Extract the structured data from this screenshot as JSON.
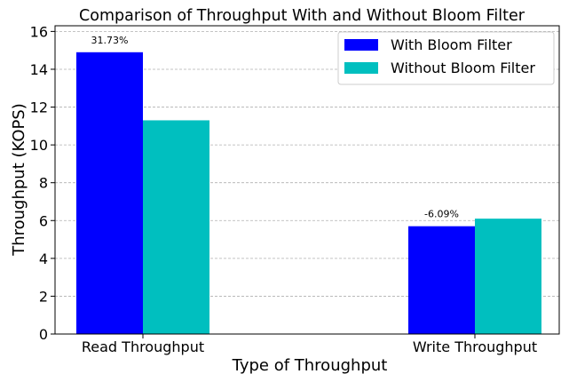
{
  "chart_data": {
    "type": "bar",
    "title": "Comparison of Throughput With and Without Bloom Filter",
    "xlabel": "Type of Throughput",
    "ylabel": "Throughput (KOPS)",
    "categories": [
      "Read Throughput",
      "Write Throughput"
    ],
    "series": [
      {
        "name": "With Bloom Filter",
        "values": [
          14.9,
          5.7
        ],
        "color": "#0000ff"
      },
      {
        "name": "Without Bloom Filter",
        "values": [
          11.3,
          6.1
        ],
        "color": "#00bfbf"
      }
    ],
    "annotations": [
      "31.73%",
      "-6.09%"
    ],
    "ylim": [
      0,
      16.3
    ],
    "yticks": [
      0,
      2,
      4,
      6,
      8,
      10,
      12,
      14,
      16
    ],
    "grid": "horizontal-dashed",
    "legend_position": "top-right"
  }
}
